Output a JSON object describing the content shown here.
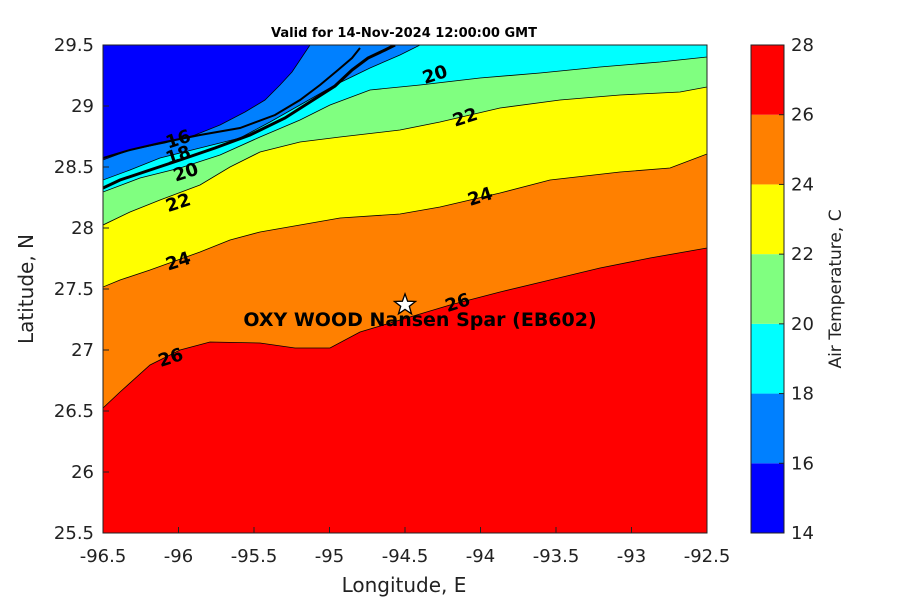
{
  "chart_data": {
    "type": "contour",
    "title": "Valid for 14-Nov-2024 12:00:00 GMT",
    "xlabel": "Longitude, E",
    "ylabel": "Latitude, N",
    "xlim": [
      -96.5,
      -92.5
    ],
    "ylim": [
      25.5,
      29.5
    ],
    "xticks": [
      "-96.5",
      "-96",
      "-95.5",
      "-95",
      "-94.5",
      "-94",
      "-93.5",
      "-93",
      "-92.5"
    ],
    "yticks": [
      "29.5",
      "29",
      "28.5",
      "28",
      "27.5",
      "27",
      "26.5",
      "26",
      "25.5"
    ],
    "colorbar": {
      "label": "Air Temperature, C",
      "ticks": [
        "28",
        "26",
        "24",
        "22",
        "20",
        "18",
        "16",
        "14"
      ],
      "levels": [
        14,
        16,
        18,
        20,
        22,
        24,
        26,
        28
      ],
      "colors": [
        "#0000ff",
        "#0080ff",
        "#00ffff",
        "#80ff80",
        "#ffff00",
        "#ff8000",
        "#ff0000",
        "#800000"
      ]
    },
    "contour_labels": [
      {
        "text": "20",
        "x": -94.3,
        "y": 29.25
      },
      {
        "text": "22",
        "x": -94.1,
        "y": 28.9
      },
      {
        "text": "24",
        "x": -94.0,
        "y": 28.25
      },
      {
        "text": "26",
        "x": -94.15,
        "y": 27.38
      },
      {
        "text": "16",
        "x": -96.0,
        "y": 28.72
      },
      {
        "text": "18",
        "x": -96.0,
        "y": 28.59
      },
      {
        "text": "20",
        "x": -95.95,
        "y": 28.45
      },
      {
        "text": "22",
        "x": -96.0,
        "y": 28.2
      },
      {
        "text": "24",
        "x": -96.0,
        "y": 27.72
      },
      {
        "text": "26",
        "x": -96.05,
        "y": 26.93
      }
    ],
    "station": {
      "name": "OXY WOOD Nansen Spar (EB602)",
      "lon": -94.5,
      "lat": 27.37
    }
  }
}
